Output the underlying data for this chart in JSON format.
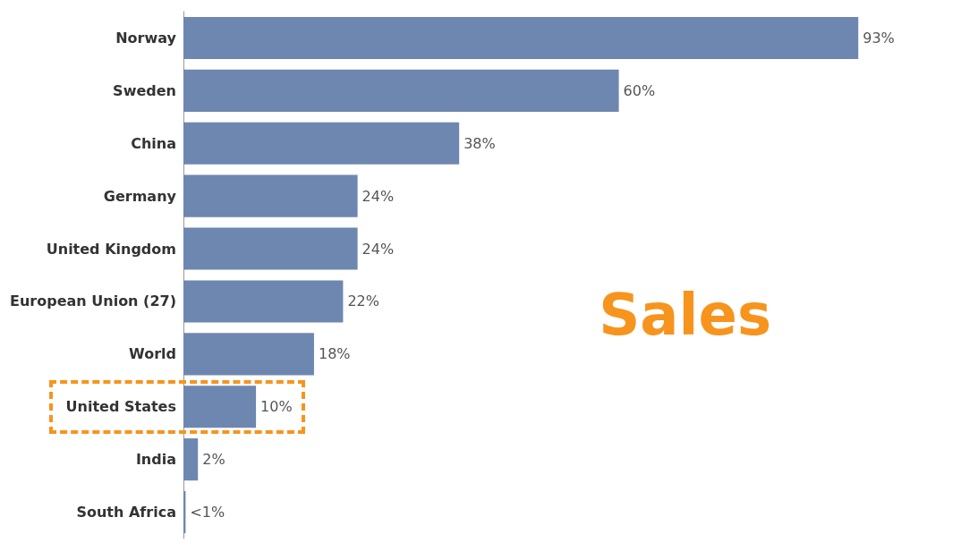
{
  "chart_data": {
    "type": "bar",
    "orientation": "horizontal",
    "categories": [
      "Norway",
      "Sweden",
      "China",
      "Germany",
      "United Kingdom",
      "European Union (27)",
      "World",
      "United States",
      "India",
      "South Africa"
    ],
    "values": [
      93,
      60,
      38,
      24,
      24,
      22,
      18,
      10,
      2,
      0.3
    ],
    "value_labels": [
      "93%",
      "60%",
      "38%",
      "24%",
      "24%",
      "22%",
      "18%",
      "10%",
      "2%",
      "<1%"
    ],
    "color": "#6e87b0",
    "tick_labels": "y",
    "annotations": [
      "Sales"
    ]
  }
}
